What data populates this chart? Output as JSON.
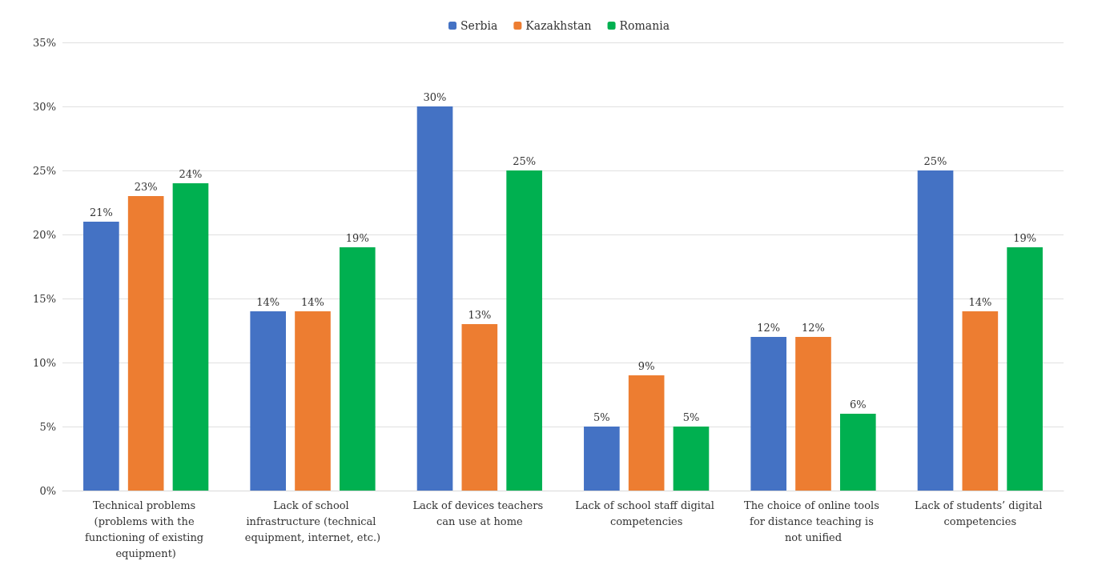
{
  "chart_data": {
    "type": "bar",
    "categories": [
      "Technical problems (problems with the functioning of existing equipment)",
      "Lack of school infrastructure (technical equipment, internet, etc.)",
      "Lack of devices teachers can use at home",
      "Lack of school staff digital competencies",
      "The choice of online tools for distance teaching is not unified",
      "Lack of students’ digital competencies"
    ],
    "series": [
      {
        "name": "Serbia",
        "color": "#4472c4",
        "values": [
          21,
          14,
          30,
          5,
          12,
          25
        ],
        "value_labels": [
          "21%",
          "14%",
          "30%",
          "5%",
          "12%",
          "25%"
        ]
      },
      {
        "name": "Kazakhstan",
        "color": "#ed7d31",
        "values": [
          23,
          14,
          13,
          9,
          12,
          14
        ],
        "value_labels": [
          "23%",
          "14%",
          "13%",
          "9%",
          "12%",
          "14%"
        ]
      },
      {
        "name": "Romania",
        "color": "#00b050",
        "values": [
          24,
          19,
          25,
          5,
          6,
          19
        ],
        "value_labels": [
          "24%",
          "19%",
          "25%",
          "5%",
          "6%",
          "19%"
        ]
      }
    ],
    "ylim": [
      0,
      35
    ],
    "yticks": [
      {
        "value": 0,
        "label": "0%"
      },
      {
        "value": 5,
        "label": "5%"
      },
      {
        "value": 10,
        "label": "10%"
      },
      {
        "value": 15,
        "label": "15%"
      },
      {
        "value": 20,
        "label": "20%"
      },
      {
        "value": 25,
        "label": "25%"
      },
      {
        "value": 30,
        "label": "30%"
      },
      {
        "value": 35,
        "label": "35%"
      }
    ],
    "grid": "y",
    "legend": "top"
  }
}
